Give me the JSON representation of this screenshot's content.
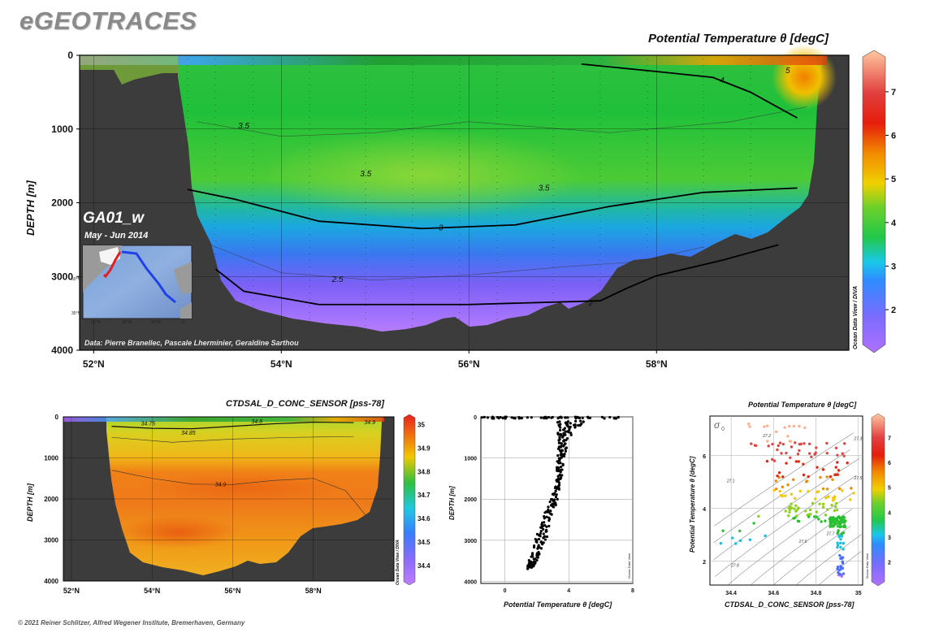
{
  "header": {
    "logo": "eGEOTRACES",
    "copyright": "© 2021 Reiner Schlitzer, Alfred Wegener Institute, Bremerhaven, Germany"
  },
  "main_section": {
    "title": "Potential Temperature θ [degC]",
    "ylabel": "DEPTH [m]",
    "cruise": "GA01_w",
    "period": "May - Jun 2014",
    "credit": "Data: Pierre Branellec, Pascale Lherminier, Geraldine Sarthou",
    "watermark": "Ocean Data View / DIVA",
    "inset_labels": [
      "50°N",
      "35°N",
      "60°W",
      "40°W",
      "20°W",
      "0°"
    ]
  },
  "salinity_section": {
    "title": "CTDSAL_D_CONC_SENSOR [pss-78]",
    "ylabel": "DEPTH [m]",
    "watermark": "Ocean Data View / DIVA"
  },
  "profile_plot": {
    "xlabel": "Potential Temperature θ [degC]",
    "ylabel": "DEPTH [m]",
    "watermark": "Ocean Data View"
  },
  "ts_plot": {
    "title": "Potential Temperature θ [degC]",
    "xlabel": "CTDSAL_D_CONC_SENSOR [pss-78]",
    "ylabel": "Potential Temperature θ [degC]",
    "sigma_label": "σ",
    "sigma_sub": "0",
    "watermark": "Ocean Data View"
  },
  "chart_data": [
    {
      "type": "heatmap",
      "title": "Potential Temperature θ [degC]",
      "ylabel": "DEPTH [m]",
      "x_ticks": [
        "52°N",
        "54°N",
        "56°N",
        "58°N"
      ],
      "x_tick_values": [
        52,
        54,
        56,
        58
      ],
      "xlim": [
        51.85,
        60.05
      ],
      "y_ticks": [
        0,
        1000,
        2000,
        3000,
        4000
      ],
      "ylim": [
        0,
        4000
      ],
      "colorbar_ticks": [
        2,
        3,
        4,
        5,
        6,
        7
      ],
      "colorbar_range": [
        1.2,
        7.8
      ],
      "contour_labels": [
        {
          "text": "4",
          "lat": 58.7,
          "depth": 330
        },
        {
          "text": "3.5",
          "lat": 53.6,
          "depth": 950
        },
        {
          "text": "3.5",
          "lat": 54.9,
          "depth": 1600
        },
        {
          "text": "3.5",
          "lat": 56.8,
          "depth": 1790
        },
        {
          "text": "3",
          "lat": 55.7,
          "depth": 2330
        },
        {
          "text": "2.5",
          "lat": 54.6,
          "depth": 3030
        },
        {
          "text": "2",
          "lat": 57.3,
          "depth": 3350
        },
        {
          "text": "5",
          "lat": 59.4,
          "depth": 200
        }
      ],
      "contours": [
        {
          "value": 2,
          "points": [
            [
              53.3,
              2900
            ],
            [
              53.6,
              3200
            ],
            [
              54.4,
              3380
            ],
            [
              56.0,
              3380
            ],
            [
              57.4,
              3330
            ],
            [
              57.7,
              3150
            ],
            [
              58.0,
              2990
            ],
            [
              58.7,
              2780
            ],
            [
              59.3,
              2570
            ]
          ]
        },
        {
          "value": 3,
          "points": [
            [
              53.0,
              1820
            ],
            [
              53.5,
              1950
            ],
            [
              54.4,
              2250
            ],
            [
              55.5,
              2350
            ],
            [
              56.5,
              2300
            ],
            [
              57.5,
              2050
            ],
            [
              58.5,
              1860
            ],
            [
              59.5,
              1800
            ]
          ]
        },
        {
          "value": 4,
          "points": [
            [
              57.2,
              120
            ],
            [
              58.0,
              220
            ],
            [
              58.6,
              300
            ],
            [
              59.0,
              500
            ],
            [
              59.5,
              850
            ]
          ]
        }
      ],
      "stations": [
        53.0,
        53.3,
        53.7,
        54.3,
        54.9,
        55.4,
        55.9,
        56.3,
        56.9,
        57.4,
        57.9,
        58.5,
        59.0
      ]
    },
    {
      "type": "heatmap",
      "title": "CTDSAL_D_CONC_SENSOR [pss-78]",
      "ylabel": "DEPTH [m]",
      "x_ticks": [
        "52°N",
        "54°N",
        "56°N",
        "58°N"
      ],
      "x_tick_values": [
        52,
        54,
        56,
        58
      ],
      "xlim": [
        51.8,
        60.0
      ],
      "y_ticks": [
        0,
        1000,
        2000,
        3000,
        4000
      ],
      "ylim": [
        0,
        4000
      ],
      "colorbar_ticks": [
        34.4,
        34.5,
        34.6,
        34.7,
        34.8,
        34.9,
        35
      ],
      "colorbar_range": [
        34.33,
        35.03
      ],
      "contour_labels": [
        {
          "text": "34.75",
          "lat": 53.9,
          "depth": 150
        },
        {
          "text": "34.85",
          "lat": 54.9,
          "depth": 380
        },
        {
          "text": "34.8",
          "lat": 56.6,
          "depth": 100
        },
        {
          "text": "34.9",
          "lat": 55.7,
          "depth": 1630
        },
        {
          "text": "34.9",
          "lat": 59.4,
          "depth": 120
        }
      ]
    },
    {
      "type": "scatter",
      "xlabel": "Potential Temperature θ [degC]",
      "ylabel": "DEPTH [m]",
      "x_ticks": [
        0,
        4,
        8
      ],
      "xlim": [
        -1.5,
        8
      ],
      "y_ticks": [
        0,
        1000,
        2000,
        3000,
        4000
      ],
      "ylim": [
        0,
        4050
      ],
      "y_reversed": true,
      "profile_envelope": [
        {
          "depth": 100,
          "min": 3.3,
          "max": 5.2
        },
        {
          "depth": 300,
          "min": 3.3,
          "max": 4.3
        },
        {
          "depth": 600,
          "min": 3.3,
          "max": 4.0
        },
        {
          "depth": 1000,
          "min": 3.3,
          "max": 3.7
        },
        {
          "depth": 1500,
          "min": 3.2,
          "max": 3.55
        },
        {
          "depth": 2000,
          "min": 2.9,
          "max": 3.3
        },
        {
          "depth": 2500,
          "min": 2.3,
          "max": 2.9
        },
        {
          "depth": 3000,
          "min": 1.9,
          "max": 2.6
        },
        {
          "depth": 3500,
          "min": 1.5,
          "max": 2.0
        },
        {
          "depth": 3700,
          "min": 1.4,
          "max": 1.7
        }
      ],
      "surface_range": [
        -1.5,
        7.5
      ]
    },
    {
      "type": "scatter",
      "title": "Potential Temperature θ [degC]",
      "xlabel": "CTDSAL_D_CONC_SENSOR [pss-78]",
      "ylabel": "Potential Temperature θ [degC]",
      "x_ticks": [
        34.4,
        34.6,
        34.8,
        35
      ],
      "xlim": [
        34.3,
        35.02
      ],
      "y_ticks": [
        2,
        4,
        6
      ],
      "ylim": [
        1.1,
        7.5
      ],
      "colorbar_ticks": [
        2,
        3,
        4,
        5,
        6,
        7
      ],
      "colorbar_range": [
        1.2,
        7.8
      ],
      "isopycnals": [
        "27.1",
        "27.2",
        "27.3",
        "27.5",
        "27.6",
        "27.7",
        "27.8"
      ]
    }
  ]
}
